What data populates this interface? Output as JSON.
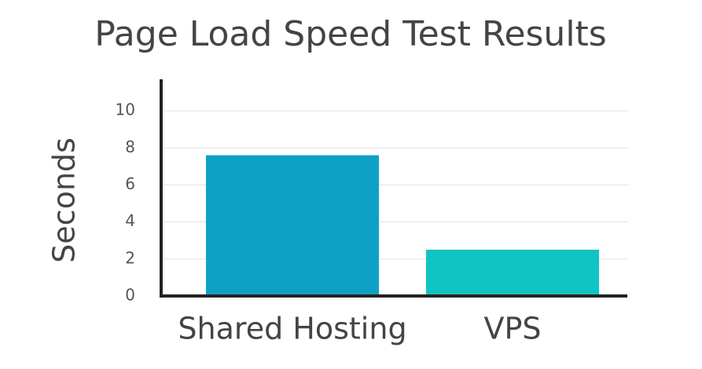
{
  "chart_data": {
    "type": "bar",
    "title": "Page Load Speed Test Results",
    "y_label": "Seconds",
    "categories": [
      "Shared Hosting",
      "VPS"
    ],
    "values": [
      7.6,
      2.5
    ],
    "colors": [
      "#0ea1c8",
      "#10c4c4"
    ],
    "ylim": [
      0,
      11.7
    ],
    "yticks": [
      0,
      2,
      4,
      6,
      8,
      10
    ],
    "grid": true
  }
}
